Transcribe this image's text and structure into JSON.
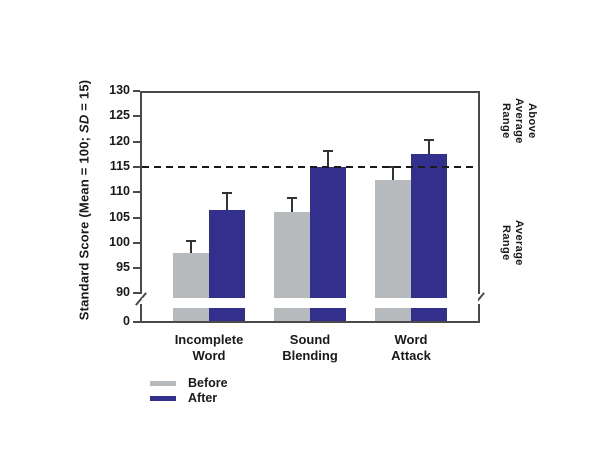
{
  "chart_data": {
    "type": "bar",
    "title": "",
    "ylabel": {
      "prefix": "Standard Score (Mean = 100; ",
      "italic": "SD",
      "suffix": " = 15)"
    },
    "categories": [
      {
        "lines": [
          "Incomplete",
          "Word"
        ]
      },
      {
        "lines": [
          "Sound",
          "Blending"
        ]
      },
      {
        "lines": [
          "Word",
          "Attack"
        ]
      }
    ],
    "series": [
      {
        "name": "Before",
        "color": "#b6babd",
        "values": [
          98,
          106,
          112.5
        ],
        "errors_plus": [
          2.5,
          3,
          2.7
        ]
      },
      {
        "name": "After",
        "color": "#332f8d",
        "values": [
          106.5,
          115,
          117.5
        ],
        "errors_plus": [
          3.5,
          3.3,
          3
        ]
      }
    ],
    "y_ticks": [
      130,
      125,
      120,
      115,
      110,
      105,
      100,
      95,
      90
    ],
    "zero_tick_label": "0",
    "ylim": [
      90,
      130
    ],
    "axis_break_between": [
      0,
      90
    ],
    "reference_line": {
      "value": 115,
      "style": "dashed",
      "color": "#1a1a1a"
    },
    "right_labels": [
      {
        "lines": [
          "Above Average",
          "Range"
        ]
      },
      {
        "lines": [
          "Average",
          "Range"
        ]
      }
    ],
    "legend_position": "bottom-left",
    "grid": false,
    "axis_color": "#4a4a4a",
    "error_bar_color": "#333333"
  }
}
